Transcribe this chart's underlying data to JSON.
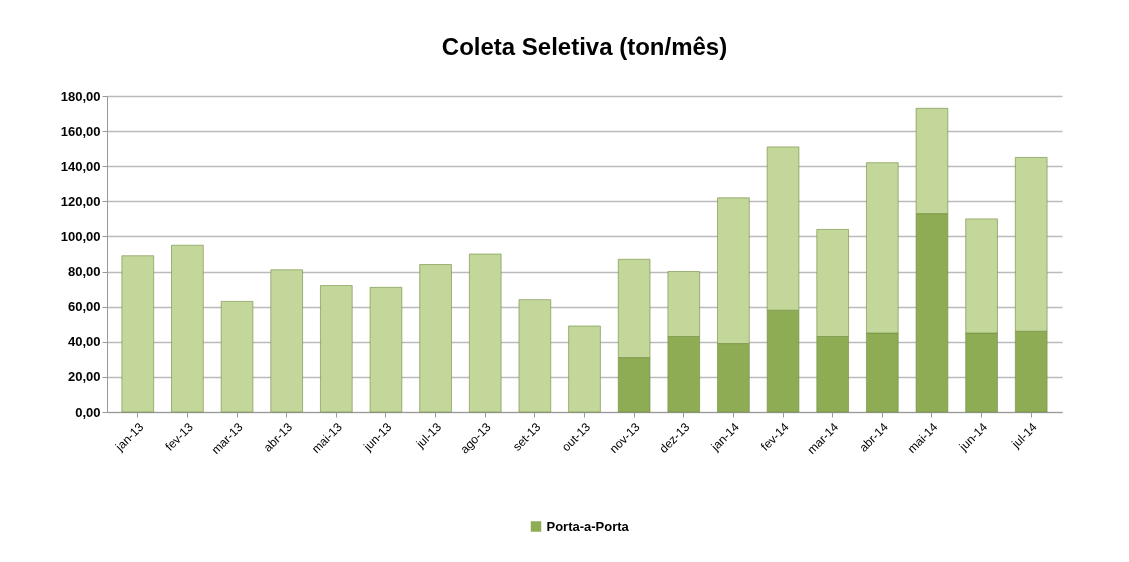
{
  "chart_data": {
    "type": "bar",
    "title": "Coleta Seletiva (ton/mês)",
    "categories": [
      "jan-13",
      "fev-13",
      "mar-13",
      "abr-13",
      "mai-13",
      "jun-13",
      "jul-13",
      "ago-13",
      "set-13",
      "out-13",
      "nov-13",
      "dez-13",
      "jan-14",
      "fev-14",
      "mar-14",
      "abr-14",
      "mai-14",
      "jun-14",
      "jul-14"
    ],
    "series": [
      {
        "name": "Porta-a-Porta",
        "color": "#8eac54",
        "values": [
          null,
          null,
          null,
          null,
          null,
          null,
          null,
          null,
          null,
          null,
          31,
          43,
          39,
          58,
          43,
          45,
          113,
          45,
          46
        ]
      },
      {
        "color": "#c4d79b",
        "values": [
          89,
          95,
          63,
          81,
          72,
          71,
          84,
          90,
          64,
          49,
          56,
          37,
          83,
          93,
          61,
          97,
          60,
          65,
          99
        ]
      }
    ],
    "stacked": true,
    "ylim": [
      0,
      180
    ],
    "yticks": [
      {
        "value": 0,
        "label": "0,00"
      },
      {
        "value": 20,
        "label": "20,00"
      },
      {
        "value": 40,
        "label": "40,00"
      },
      {
        "value": 60,
        "label": "60,00"
      },
      {
        "value": 80,
        "label": "80,00"
      },
      {
        "value": 100,
        "label": "100,00"
      },
      {
        "value": 120,
        "label": "120,00"
      },
      {
        "value": 140,
        "label": "140,00"
      },
      {
        "value": 160,
        "label": "160,00"
      },
      {
        "value": 180,
        "label": "180,00"
      }
    ],
    "grid": "y",
    "legend": "bottom"
  }
}
